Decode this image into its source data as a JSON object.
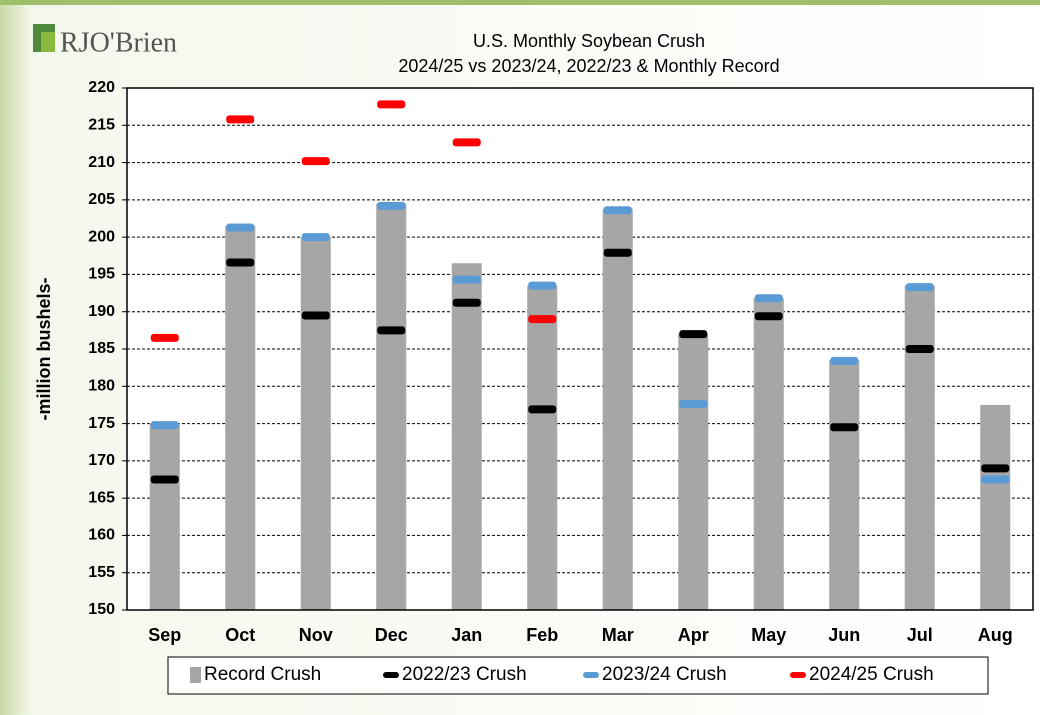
{
  "chart_data": {
    "type": "bar",
    "logo": "RJO'Brien",
    "title": "U.S. Monthly Soybean Crush",
    "subtitle": "2024/25 vs 2023/24, 2022/23 & Monthly Record",
    "y_label": "-million bushels-",
    "categories": [
      "Sep",
      "Oct",
      "Nov",
      "Dec",
      "Jan",
      "Feb",
      "Mar",
      "Apr",
      "May",
      "Jun",
      "Jul",
      "Aug"
    ],
    "series": [
      {
        "name": "Record Crush",
        "type": "bar",
        "color": "#a6a6a6",
        "values": [
          175,
          201.5,
          200,
          204.5,
          196.5,
          193.5,
          203.8,
          187,
          191.8,
          183.5,
          193.5,
          177.5
        ]
      },
      {
        "name": "2022/23 Crush",
        "type": "marker",
        "color": "#000000",
        "values": [
          167.5,
          196.6,
          189.5,
          187.5,
          191.2,
          176.9,
          197.9,
          187,
          189.4,
          174.5,
          185,
          169
        ]
      },
      {
        "name": "2023/24 Crush",
        "type": "marker",
        "color": "#5b9bd5",
        "values": [
          174.8,
          201.3,
          200,
          204.2,
          194.3,
          193.5,
          203.6,
          177.6,
          191.8,
          183.4,
          193.3,
          167.5
        ]
      },
      {
        "name": "2024/25 Crush",
        "type": "marker",
        "color": "#ff0000",
        "values": [
          186.5,
          215.8,
          210.2,
          217.8,
          212.7,
          189,
          null,
          null,
          null,
          null,
          null,
          null
        ]
      }
    ],
    "ylim": [
      150,
      220
    ],
    "yticks": [
      150,
      155,
      160,
      165,
      170,
      175,
      180,
      185,
      190,
      195,
      200,
      205,
      210,
      215,
      220
    ],
    "grid": true
  }
}
